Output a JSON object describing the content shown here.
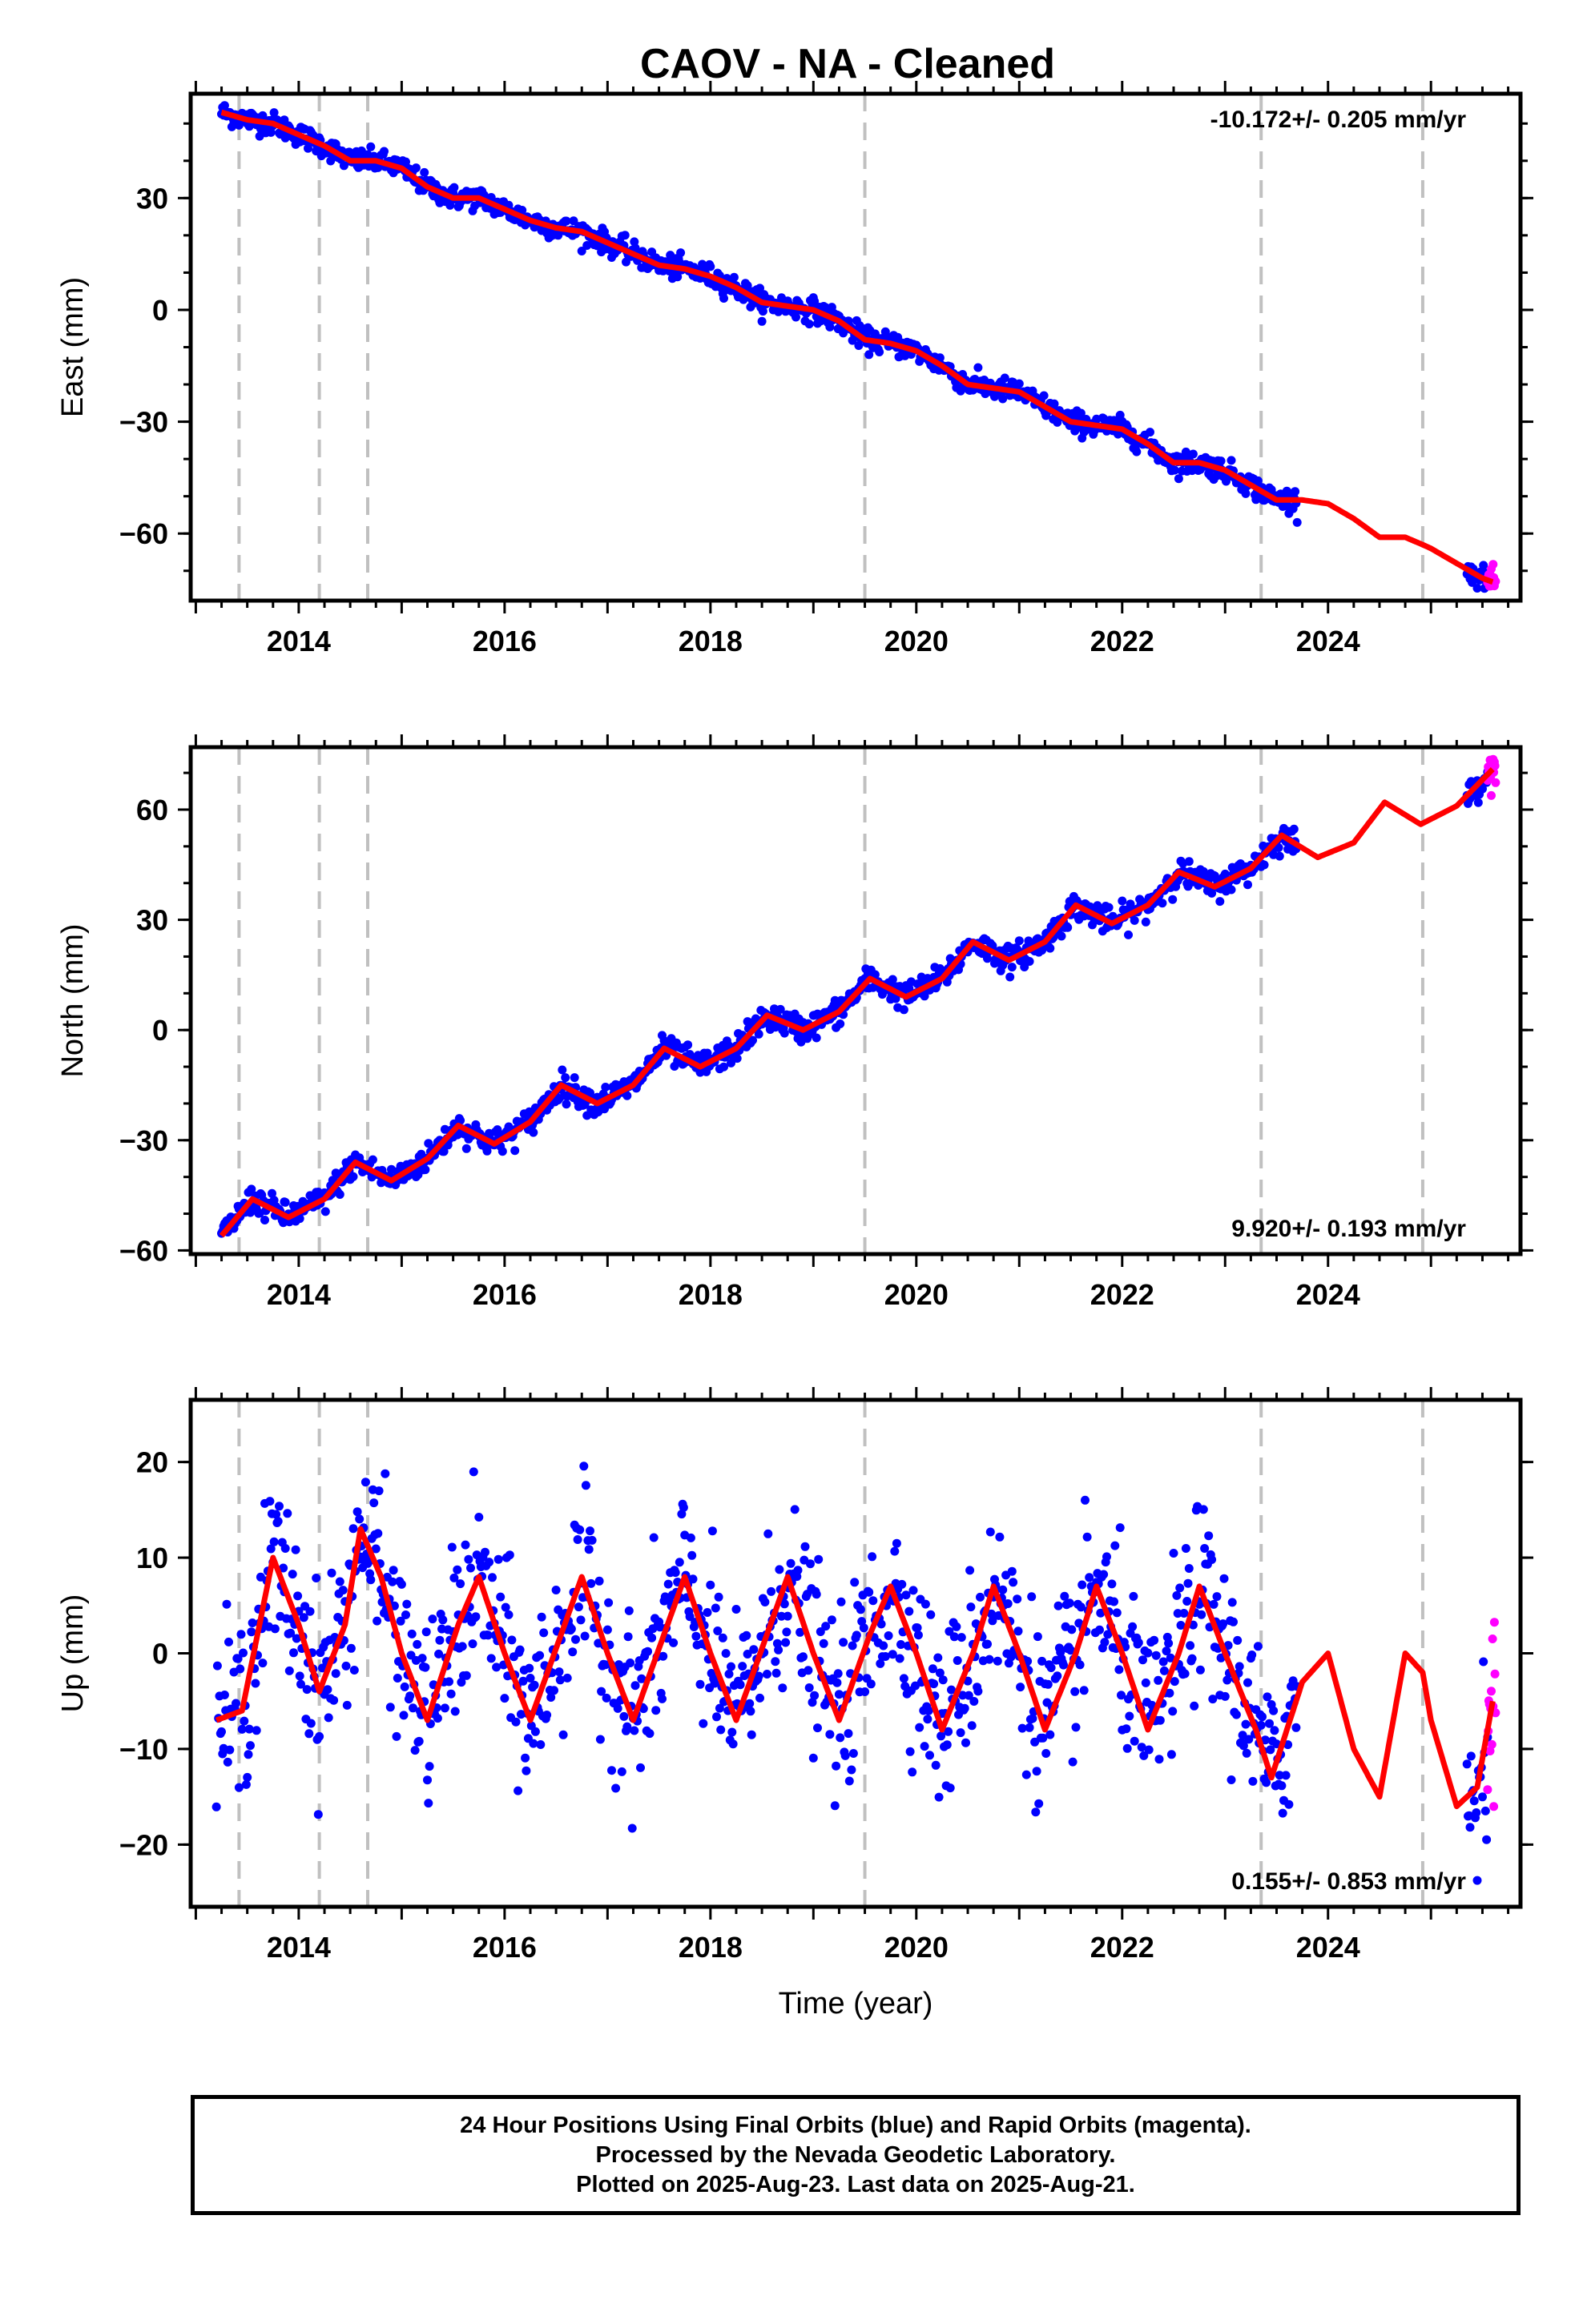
{
  "title": "CAOV  - NA - Cleaned",
  "colors": {
    "final_orbits": "#0000ff",
    "rapid_orbits": "#ff00ff",
    "model": "#ff0000",
    "event_lines": "#c0c0c0"
  },
  "chart_data": [
    {
      "type": "scatter",
      "ylabel": "East (mm)",
      "xlabel": "",
      "xlim": [
        2012.95,
        2025.87
      ],
      "ylim": [
        -78,
        58
      ],
      "yticks": [
        30,
        0,
        -30,
        -60
      ],
      "xticks": [
        2014,
        2016,
        2018,
        2020,
        2022,
        2024
      ],
      "annotation": "-10.172+/- 0.205 mm/yr",
      "annotation_pos": "top-right",
      "event_lines_x": [
        2013.42,
        2014.2,
        2014.67,
        2019.5,
        2023.35,
        2024.92
      ],
      "model": {
        "x": [
          2013.25,
          2013.5,
          2013.75,
          2014.0,
          2014.25,
          2014.5,
          2014.75,
          2015.0,
          2015.25,
          2015.5,
          2015.75,
          2016.0,
          2016.25,
          2016.5,
          2016.75,
          2017.0,
          2017.25,
          2017.5,
          2017.75,
          2018.0,
          2018.25,
          2018.5,
          2018.75,
          2019.0,
          2019.25,
          2019.5,
          2019.75,
          2020.0,
          2020.25,
          2020.5,
          2020.75,
          2021.0,
          2021.25,
          2021.5,
          2021.75,
          2022.0,
          2022.25,
          2022.5,
          2022.75,
          2023.0,
          2023.25,
          2023.5,
          2023.75,
          2024.0,
          2024.25,
          2024.5,
          2024.75,
          2024.92,
          2025.0,
          2025.25,
          2025.5,
          2025.6
        ],
        "y": [
          53,
          51,
          50,
          47,
          44,
          40,
          40,
          38,
          33,
          30,
          30,
          27,
          24,
          22,
          21,
          18,
          15,
          12,
          11,
          9,
          6,
          2,
          1,
          0,
          -3,
          -8,
          -9,
          -11,
          -15,
          -20,
          -21,
          -22,
          -26,
          -30,
          -31,
          -32,
          -36,
          -41,
          -41,
          -43,
          -47,
          -51,
          -51,
          -52,
          -56,
          -61,
          -61,
          -63,
          -64,
          -68,
          -72,
          -73
        ]
      },
      "final_orbits_segments": [
        [
          2013.25,
          2023.7
        ],
        [
          2025.35,
          2025.55
        ]
      ],
      "rapid_orbits_x": [
        2025.55,
        2025.63
      ],
      "scatter_mm": 1.5
    },
    {
      "type": "scatter",
      "ylabel": "North (mm)",
      "xlabel": "",
      "xlim": [
        2012.95,
        2025.87
      ],
      "ylim": [
        -61,
        77
      ],
      "yticks": [
        60,
        30,
        0,
        -30,
        -60
      ],
      "xticks": [
        2014,
        2016,
        2018,
        2020,
        2022,
        2024
      ],
      "annotation": "9.920+/- 0.193 mm/yr",
      "annotation_pos": "bottom-right",
      "event_lines_x": [
        2013.42,
        2014.2,
        2014.67,
        2019.5,
        2023.35,
        2024.92
      ],
      "model": {
        "x": [
          2013.25,
          2013.55,
          2013.9,
          2014.25,
          2014.55,
          2014.9,
          2015.25,
          2015.55,
          2015.9,
          2016.25,
          2016.55,
          2016.9,
          2017.25,
          2017.55,
          2017.9,
          2018.25,
          2018.55,
          2018.9,
          2019.25,
          2019.55,
          2019.9,
          2020.25,
          2020.55,
          2020.9,
          2021.25,
          2021.55,
          2021.9,
          2022.25,
          2022.55,
          2022.9,
          2023.25,
          2023.55,
          2023.9,
          2024.25,
          2024.55,
          2024.9,
          2025.25,
          2025.6
        ],
        "y": [
          -56,
          -46,
          -51,
          -46,
          -36,
          -41,
          -35,
          -26,
          -31,
          -25,
          -15,
          -20,
          -15,
          -5,
          -10,
          -5,
          4,
          0,
          5,
          14,
          9,
          14,
          24,
          19,
          24,
          34,
          29,
          34,
          43,
          39,
          44,
          53,
          47,
          51,
          62,
          56,
          61,
          71
        ]
      },
      "final_orbits_segments": [
        [
          2013.25,
          2023.7
        ],
        [
          2025.35,
          2025.55
        ]
      ],
      "rapid_orbits_x": [
        2025.55,
        2025.63
      ],
      "scatter_mm": 1.8
    },
    {
      "type": "scatter",
      "ylabel": "Up (mm)",
      "xlabel": "Time (year)",
      "xlim": [
        2012.95,
        2025.87
      ],
      "ylim": [
        -26.5,
        26.5
      ],
      "yticks": [
        20,
        10,
        0,
        -10,
        -20
      ],
      "xticks": [
        2014,
        2016,
        2018,
        2020,
        2022,
        2024
      ],
      "annotation": "0.155+/- 0.853 mm/yr",
      "annotation_pos": "bottom-right",
      "event_lines_x": [
        2013.42,
        2014.2,
        2014.67,
        2019.5,
        2023.35,
        2024.92
      ],
      "model": {
        "x": [
          2013.2,
          2013.45,
          2013.75,
          2014.0,
          2014.2,
          2014.45,
          2014.6,
          2014.8,
          2015.0,
          2015.25,
          2015.55,
          2015.75,
          2016.0,
          2016.25,
          2016.55,
          2016.75,
          2017.0,
          2017.25,
          2017.55,
          2017.75,
          2018.0,
          2018.25,
          2018.55,
          2018.75,
          2019.0,
          2019.25,
          2019.55,
          2019.75,
          2020.0,
          2020.25,
          2020.55,
          2020.75,
          2021.0,
          2021.25,
          2021.55,
          2021.75,
          2022.0,
          2022.25,
          2022.55,
          2022.75,
          2023.0,
          2023.3,
          2023.45,
          2023.75,
          2024.0,
          2024.25,
          2024.5,
          2024.75,
          2024.92,
          2025.0,
          2025.25,
          2025.45,
          2025.6
        ],
        "y": [
          -7,
          -6,
          10,
          3,
          -4,
          3,
          13,
          8,
          0,
          -7,
          3,
          8,
          0,
          -7,
          2,
          8,
          0,
          -7,
          2,
          8,
          0,
          -7,
          2,
          8,
          0,
          -7,
          2,
          7,
          0,
          -8,
          0,
          7,
          0,
          -8,
          0,
          7,
          0,
          -8,
          0,
          7,
          0,
          -8,
          -13,
          -3,
          0,
          -10,
          -15,
          0,
          -2,
          -7,
          -16,
          -14,
          -5
        ]
      },
      "final_orbits_segments": [
        [
          2013.2,
          2023.7
        ],
        [
          2025.35,
          2025.55
        ]
      ],
      "rapid_orbits_x": [
        2025.55,
        2025.63
      ],
      "scatter_mm": 4.5
    }
  ],
  "caption": {
    "line1": "24 Hour Positions Using Final Orbits (blue) and Rapid Orbits (magenta).",
    "line2": "Processed by the Nevada Geodetic Laboratory.",
    "line3": "Plotted on 2025-Aug-23. Last data on 2025-Aug-21."
  }
}
